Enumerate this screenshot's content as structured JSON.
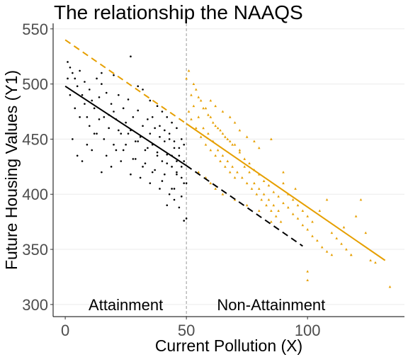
{
  "chart_data": {
    "type": "scatter",
    "title": "The relationship the NAAQS",
    "xlabel": "Current Pollution (X)",
    "ylabel": "Future Housing Values (Y1)",
    "xlim": [
      -5,
      140
    ],
    "ylim": [
      289,
      555
    ],
    "x_ticks": [
      0,
      50,
      100
    ],
    "y_ticks": [
      300,
      350,
      400,
      450,
      500,
      550
    ],
    "grid": "horizontal",
    "cutoff_x": 50,
    "region_labels": [
      {
        "text": "Attainment",
        "x": 25,
        "y": 300
      },
      {
        "text": "Non-Attainment",
        "x": 85,
        "y": 300
      }
    ],
    "colors": {
      "attainment": "#000000",
      "non_attainment": "#E69F00",
      "cutoff": "#999999",
      "grid": "#ebebeb"
    },
    "fit_lines": [
      {
        "group": "attainment",
        "style": "solid",
        "points": [
          [
            0,
            498
          ],
          [
            50,
            426
          ]
        ]
      },
      {
        "group": "attainment",
        "style": "dashed",
        "points": [
          [
            50,
            426
          ],
          [
            98,
            353
          ]
        ]
      },
      {
        "group": "non-attainment",
        "style": "solid",
        "points": [
          [
            50,
            464
          ],
          [
            132,
            340
          ]
        ]
      },
      {
        "group": "non-attainment",
        "style": "dashed",
        "points": [
          [
            0,
            540
          ],
          [
            50,
            464
          ]
        ]
      }
    ],
    "series": [
      {
        "group": "attainment",
        "marker": "dot",
        "points": [
          [
            1,
            520
          ],
          [
            2,
            515
          ],
          [
            3,
            510
          ],
          [
            4,
            505
          ],
          [
            5,
            498
          ],
          [
            6,
            512
          ],
          [
            7,
            490
          ],
          [
            8,
            502
          ],
          [
            9,
            470
          ],
          [
            10,
            495
          ],
          [
            11,
            485
          ],
          [
            12,
            478
          ],
          [
            13,
            505
          ],
          [
            14,
            488
          ],
          [
            15,
            500
          ],
          [
            16,
            470
          ],
          [
            17,
            492
          ],
          [
            18,
            460
          ],
          [
            19,
            482
          ],
          [
            20,
            475
          ],
          [
            21,
            468
          ],
          [
            22,
            490
          ],
          [
            23,
            455
          ],
          [
            24,
            478
          ],
          [
            25,
            465
          ],
          [
            26,
            486
          ],
          [
            27,
            458
          ],
          [
            28,
            470
          ],
          [
            29,
            448
          ],
          [
            30,
            476
          ],
          [
            31,
            452
          ],
          [
            32,
            462
          ],
          [
            33,
            440
          ],
          [
            34,
            468
          ],
          [
            35,
            455
          ],
          [
            36,
            445
          ],
          [
            37,
            460
          ],
          [
            38,
            438
          ],
          [
            39,
            452
          ],
          [
            40,
            430
          ],
          [
            41,
            448
          ],
          [
            42,
            436
          ],
          [
            43,
            455
          ],
          [
            44,
            425
          ],
          [
            45,
            442
          ],
          [
            46,
            420
          ],
          [
            47,
            435
          ],
          [
            48,
            415
          ],
          [
            49,
            430
          ],
          [
            50,
            410
          ],
          [
            2,
            490
          ],
          [
            4,
            478
          ],
          [
            6,
            470
          ],
          [
            8,
            482
          ],
          [
            10,
            462
          ],
          [
            12,
            455
          ],
          [
            14,
            468
          ],
          [
            16,
            450
          ],
          [
            18,
            472
          ],
          [
            20,
            445
          ],
          [
            22,
            458
          ],
          [
            24,
            440
          ],
          [
            26,
            455
          ],
          [
            28,
            432
          ],
          [
            30,
            448
          ],
          [
            32,
            425
          ],
          [
            34,
            442
          ],
          [
            36,
            420
          ],
          [
            38,
            435
          ],
          [
            40,
            412
          ],
          [
            42,
            428
          ],
          [
            44,
            405
          ],
          [
            46,
            418
          ],
          [
            48,
            398
          ],
          [
            49,
            410
          ],
          [
            3,
            450
          ],
          [
            5,
            435
          ],
          [
            7,
            430
          ],
          [
            9,
            445
          ],
          [
            11,
            440
          ],
          [
            13,
            455
          ],
          [
            15,
            420
          ],
          [
            17,
            435
          ],
          [
            19,
            425
          ],
          [
            21,
            440
          ],
          [
            23,
            430
          ],
          [
            25,
            445
          ],
          [
            27,
            418
          ],
          [
            29,
            432
          ],
          [
            31,
            415
          ],
          [
            33,
            428
          ],
          [
            35,
            410
          ],
          [
            37,
            422
          ],
          [
            39,
            405
          ],
          [
            41,
            418
          ],
          [
            43,
            400
          ],
          [
            45,
            395
          ],
          [
            47,
            388
          ],
          [
            49,
            376
          ],
          [
            50,
            378
          ],
          [
            1,
            505
          ],
          [
            15,
            510
          ],
          [
            20,
            508
          ],
          [
            27,
            525
          ],
          [
            30,
            498
          ],
          [
            32,
            495
          ],
          [
            35,
            485
          ],
          [
            38,
            480
          ],
          [
            40,
            475
          ],
          [
            42,
            470
          ],
          [
            44,
            465
          ],
          [
            46,
            460
          ],
          [
            48,
            450
          ],
          [
            49,
            445
          ],
          [
            36,
            470
          ],
          [
            39,
            462
          ],
          [
            41,
            458
          ],
          [
            43,
            450
          ],
          [
            45,
            448
          ],
          [
            47,
            442
          ],
          [
            44,
            435
          ],
          [
            46,
            430
          ],
          [
            48,
            425
          ],
          [
            42,
            390
          ],
          [
            45,
            405
          ]
        ]
      },
      {
        "group": "non-attainment",
        "marker": "triangle",
        "points": [
          [
            50,
            505
          ],
          [
            51,
            512
          ],
          [
            52,
            490
          ],
          [
            53,
            480
          ],
          [
            54,
            495
          ],
          [
            55,
            470
          ],
          [
            56,
            485
          ],
          [
            57,
            460
          ],
          [
            58,
            478
          ],
          [
            59,
            455
          ],
          [
            60,
            470
          ],
          [
            61,
            448
          ],
          [
            62,
            462
          ],
          [
            63,
            440
          ],
          [
            64,
            458
          ],
          [
            65,
            435
          ],
          [
            66,
            452
          ],
          [
            67,
            430
          ],
          [
            68,
            448
          ],
          [
            69,
            425
          ],
          [
            70,
            445
          ],
          [
            71,
            420
          ],
          [
            72,
            438
          ],
          [
            73,
            415
          ],
          [
            74,
            432
          ],
          [
            75,
            410
          ],
          [
            76,
            428
          ],
          [
            77,
            405
          ],
          [
            78,
            422
          ],
          [
            79,
            400
          ],
          [
            80,
            418
          ],
          [
            81,
            395
          ],
          [
            82,
            412
          ],
          [
            83,
            390
          ],
          [
            84,
            408
          ],
          [
            85,
            385
          ],
          [
            86,
            402
          ],
          [
            87,
            380
          ],
          [
            88,
            398
          ],
          [
            89,
            375
          ],
          [
            90,
            392
          ],
          [
            92,
            388
          ],
          [
            94,
            382
          ],
          [
            96,
            378
          ],
          [
            98,
            372
          ],
          [
            100,
            368
          ],
          [
            102,
            362
          ],
          [
            104,
            358
          ],
          [
            106,
            352
          ],
          [
            108,
            348
          ],
          [
            110,
            345
          ],
          [
            112,
            360
          ],
          [
            114,
            355
          ],
          [
            116,
            350
          ],
          [
            118,
            345
          ],
          [
            120,
            380
          ],
          [
            122,
            395
          ],
          [
            124,
            365
          ],
          [
            126,
            340
          ],
          [
            128,
            338
          ],
          [
            51,
            475
          ],
          [
            52,
            468
          ],
          [
            53,
            500
          ],
          [
            54,
            460
          ],
          [
            55,
            488
          ],
          [
            56,
            452
          ],
          [
            57,
            478
          ],
          [
            58,
            445
          ],
          [
            59,
            472
          ],
          [
            60,
            440
          ],
          [
            61,
            465
          ],
          [
            62,
            435
          ],
          [
            63,
            460
          ],
          [
            64,
            430
          ],
          [
            65,
            455
          ],
          [
            66,
            425
          ],
          [
            67,
            450
          ],
          [
            68,
            420
          ],
          [
            69,
            445
          ],
          [
            70,
            415
          ],
          [
            72,
            440
          ],
          [
            74,
            425
          ],
          [
            76,
            420
          ],
          [
            78,
            410
          ],
          [
            80,
            405
          ],
          [
            82,
            400
          ],
          [
            84,
            395
          ],
          [
            86,
            390
          ],
          [
            88,
            385
          ],
          [
            90,
            410
          ],
          [
            92,
            400
          ],
          [
            94,
            395
          ],
          [
            96,
            390
          ],
          [
            98,
            385
          ],
          [
            100,
            380
          ],
          [
            60,
            485
          ],
          [
            62,
            480
          ],
          [
            65,
            475
          ],
          [
            68,
            470
          ],
          [
            70,
            465
          ],
          [
            72,
            458
          ],
          [
            75,
            452
          ],
          [
            78,
            448
          ],
          [
            80,
            442
          ],
          [
            85,
            450
          ],
          [
            90,
            420
          ],
          [
            95,
            405
          ],
          [
            55,
            420
          ],
          [
            58,
            415
          ],
          [
            60,
            410
          ],
          [
            62,
            405
          ],
          [
            65,
            400
          ],
          [
            70,
            395
          ],
          [
            75,
            390
          ],
          [
            80,
            385
          ],
          [
            85,
            375
          ],
          [
            100,
            330
          ],
          [
            102,
            375
          ],
          [
            105,
            385
          ],
          [
            108,
            395
          ],
          [
            110,
            365
          ],
          [
            115,
            370
          ],
          [
            118,
            345
          ],
          [
            100,
            322
          ],
          [
            134,
            316
          ]
        ]
      }
    ]
  }
}
